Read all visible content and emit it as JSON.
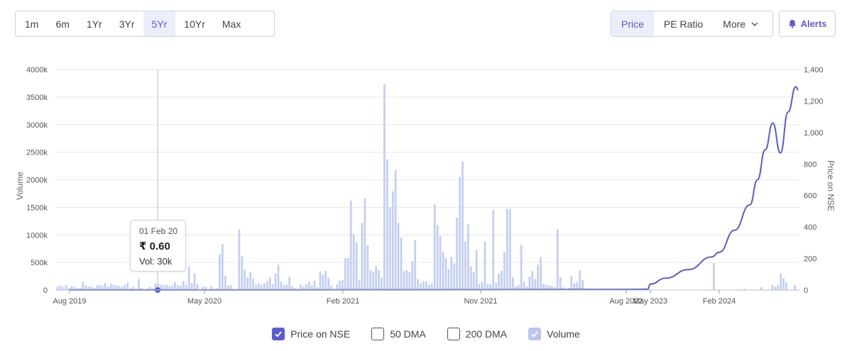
{
  "range_buttons": [
    {
      "label": "1m",
      "active": false
    },
    {
      "label": "6m",
      "active": false
    },
    {
      "label": "1Yr",
      "active": false
    },
    {
      "label": "3Yr",
      "active": false
    },
    {
      "label": "5Yr",
      "active": true
    },
    {
      "label": "10Yr",
      "active": false
    },
    {
      "label": "Max",
      "active": false
    }
  ],
  "mode_buttons": {
    "price": "Price",
    "pe_ratio": "PE Ratio",
    "more": "More"
  },
  "alerts_label": "Alerts",
  "colors": {
    "accent": "#5b5bd6",
    "volume_bar": "#c2cff3",
    "price_line": "#5b5bd6",
    "grid": "#e6e6e6"
  },
  "tooltip": {
    "date": "01 Feb 20",
    "price": "₹ 0.60",
    "volume": "Vol: 30k"
  },
  "legend": [
    {
      "label": "Price on NSE",
      "checked": true
    },
    {
      "label": "50 DMA",
      "checked": false
    },
    {
      "label": "200 DMA",
      "checked": false
    },
    {
      "label": "Volume",
      "checked": true
    }
  ],
  "chart_data": {
    "type": "bar+line",
    "x_tick_labels": [
      "Aug 2019",
      "May 2020",
      "Feb 2021",
      "Nov 2021",
      "Aug 2022",
      "May 2023",
      "Feb 2024"
    ],
    "ylabel_left": "Volume",
    "ylabel_right": "Price on NSE",
    "left_ticks": [
      "0",
      "500k",
      "1000k",
      "1500k",
      "2000k",
      "2500k",
      "3000k",
      "3500k",
      "4000k"
    ],
    "right_ticks": [
      "0",
      "200",
      "400",
      "600",
      "800",
      "1,000",
      "1,200",
      "1,400"
    ],
    "ylim_left": [
      0,
      4000000
    ],
    "ylim_right": [
      0,
      1400
    ],
    "grid": true,
    "series": [
      {
        "name": "Volume",
        "kind": "bar",
        "values": [
          60,
          80,
          50,
          90,
          40,
          70,
          60,
          30,
          40,
          150,
          90,
          60,
          70,
          40,
          80,
          90,
          70,
          130,
          60,
          110,
          90,
          80,
          70,
          60,
          90,
          130,
          30,
          60,
          20,
          200,
          40,
          10,
          30,
          60,
          30,
          120,
          110,
          100,
          90,
          100,
          70,
          80,
          140,
          90,
          80,
          160,
          90,
          430,
          120,
          300,
          100,
          10,
          60,
          60,
          10,
          70,
          20,
          30,
          650,
          830,
          260,
          80,
          90,
          20,
          20,
          1100,
          620,
          370,
          230,
          330,
          210,
          100,
          120,
          90,
          120,
          160,
          230,
          100,
          300,
          460,
          150,
          90,
          100,
          240,
          70,
          30,
          20,
          100,
          60,
          110,
          150,
          90,
          170,
          50,
          340,
          270,
          350,
          220,
          80,
          20,
          100,
          170,
          180,
          580,
          580,
          1620,
          1020,
          870,
          180,
          1220,
          1660,
          810,
          360,
          330,
          430,
          360,
          220,
          3730,
          2370,
          1500,
          1790,
          2180,
          1220,
          950,
          340,
          360,
          330,
          520,
          900,
          200,
          120,
          160,
          160,
          100,
          120,
          1560,
          1180,
          980,
          700,
          580,
          380,
          600,
          480,
          1310,
          2050,
          2330,
          880,
          1190,
          430,
          330,
          730,
          110,
          150,
          880,
          110,
          100,
          1450,
          130,
          300,
          350,
          690,
          1470,
          1470,
          230,
          60,
          90,
          820,
          150,
          60,
          240,
          340,
          200,
          460,
          600,
          110,
          90,
          80,
          70,
          50,
          1100,
          230,
          50,
          20,
          40,
          250,
          120,
          140,
          360,
          180,
          30,
          20,
          10,
          0,
          0,
          0,
          0,
          0,
          0,
          0,
          0,
          0,
          0,
          0,
          0,
          0,
          0,
          0,
          0,
          0,
          0,
          0,
          0,
          0,
          0,
          0,
          0,
          0,
          0,
          0,
          0,
          0,
          0,
          0,
          0,
          0,
          0,
          0,
          0,
          0,
          0,
          0,
          0,
          0,
          0,
          0,
          490,
          0,
          0,
          0,
          0,
          0,
          0,
          0,
          0,
          0,
          0,
          20,
          0,
          0,
          0,
          0,
          0,
          50,
          0,
          0,
          0,
          90,
          60,
          90,
          300,
          210,
          140,
          0,
          0,
          90
        ]
      },
      {
        "name": "Price on NSE",
        "kind": "line",
        "points": [
          [
            "Aug 2019",
            0.6
          ],
          [
            "Feb 2020",
            0.6
          ],
          [
            "May 2020",
            0.6
          ],
          [
            "Feb 2021",
            0.9
          ],
          [
            "Nov 2021",
            2
          ],
          [
            "Aug 2022",
            4
          ],
          [
            "Apr 2023",
            5
          ],
          [
            "May 2023",
            38
          ],
          [
            "Jul 2023",
            75
          ],
          [
            "Oct 2023",
            130
          ],
          [
            "Jan 2024",
            210
          ],
          [
            "Feb 2024",
            240
          ],
          [
            "Apr 2024",
            380
          ],
          [
            "Jun 2024",
            540
          ],
          [
            "Jul 2024",
            700
          ],
          [
            "Aug 2024",
            890
          ],
          [
            "Sep 2024",
            1060
          ],
          [
            "Oct 2024",
            870
          ],
          [
            "Nov 2024",
            1130
          ],
          [
            "Dec 2024",
            1290
          ],
          [
            "Dec 2024",
            1270
          ]
        ]
      }
    ]
  }
}
